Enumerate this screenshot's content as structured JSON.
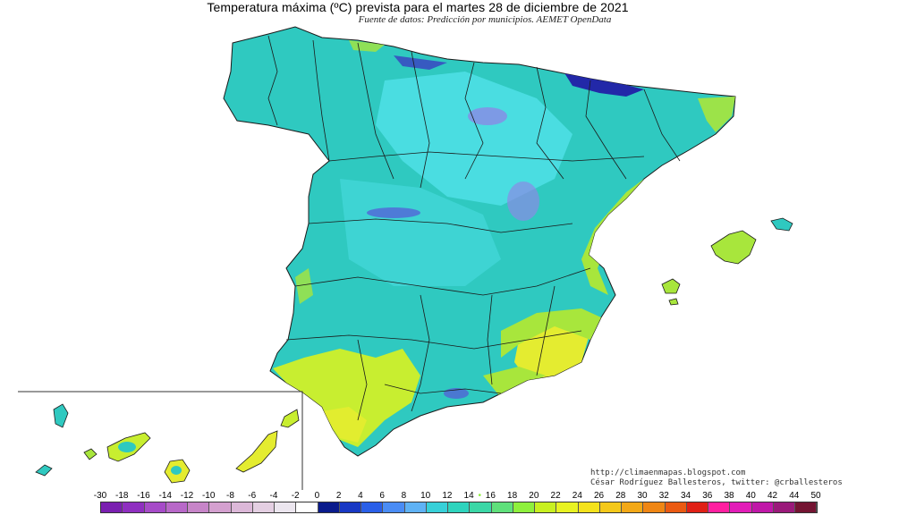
{
  "title": "Temperatura máxima (ºC) prevista para el martes 28 de diciembre de 2021",
  "subtitle": "Fuente de datos: Predicción por municipios. AEMET OpenData",
  "credit": {
    "url": "http://climaenmapas.blogspot.com",
    "author": "César Rodríguez Ballesteros, twitter: @crballesteros"
  },
  "legend": {
    "ticks": [
      "-30",
      "-18",
      "-16",
      "-14",
      "-12",
      "-10",
      "-8",
      "-6",
      "-4",
      "-2",
      "0",
      "2",
      "4",
      "6",
      "8",
      "10",
      "12",
      "14",
      "16",
      "18",
      "20",
      "22",
      "24",
      "26",
      "28",
      "30",
      "32",
      "34",
      "36",
      "38",
      "40",
      "42",
      "44",
      "50"
    ],
    "marker": "•",
    "colors": [
      "#7a1fb0",
      "#8f2fc0",
      "#a64bc8",
      "#b868c8",
      "#c785c8",
      "#d4a0cf",
      "#dcb8d8",
      "#e4cfe2",
      "#ece6ef",
      "#ffffff",
      "#0a1b8c",
      "#1838c4",
      "#2a5fe8",
      "#4a8cf5",
      "#5fb2f5",
      "#37d0d8",
      "#2ed4bd",
      "#3bd7a6",
      "#5fe07b",
      "#8ef03c",
      "#c8f020",
      "#e8f222",
      "#f4e21c",
      "#f4c81a",
      "#f2a817",
      "#ef8614",
      "#ea5a12",
      "#e02016",
      "#ff1fa0",
      "#e21cb8",
      "#c018a8",
      "#9a1a7a",
      "#741432"
    ]
  },
  "map_palette": {
    "sea": "#ffffff",
    "land_base": "#2fc9c0",
    "cold": "#4fe0e6",
    "colder": "#8a8ae6",
    "coldest": "#2228a8",
    "mild": "#a8e63c",
    "warm": "#e4ec30",
    "border": "#1a1a1a"
  }
}
